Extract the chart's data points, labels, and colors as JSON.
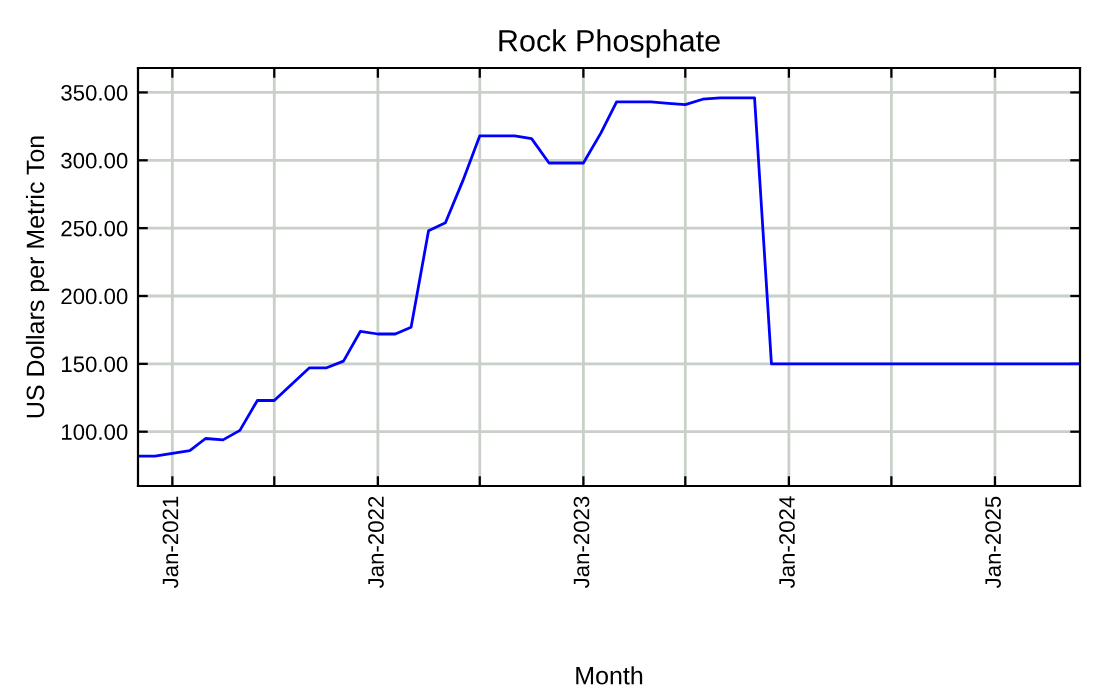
{
  "chart_data": {
    "type": "line",
    "title": "Rock Phosphate",
    "xlabel": "Month",
    "ylabel": "US Dollars per Metric Ton",
    "series": [
      {
        "color": "#0000ff",
        "x": [
          "2020-11",
          "2020-12",
          "2021-01",
          "2021-02",
          "2021-03",
          "2021-04",
          "2021-05",
          "2021-06",
          "2021-07",
          "2021-08",
          "2021-09",
          "2021-10",
          "2021-11",
          "2021-12",
          "2022-01",
          "2022-02",
          "2022-03",
          "2022-04",
          "2022-05",
          "2022-06",
          "2022-07",
          "2022-08",
          "2022-09",
          "2022-10",
          "2022-11",
          "2022-12",
          "2023-01",
          "2023-02",
          "2023-03",
          "2023-04",
          "2023-05",
          "2023-06",
          "2023-07",
          "2023-08",
          "2023-09",
          "2023-10",
          "2023-11",
          "2023-12",
          "2024-06",
          "2025-01",
          "2025-06"
        ],
        "values": [
          82,
          82,
          84,
          86,
          95,
          94,
          101,
          123,
          123,
          135,
          147,
          147,
          152,
          174,
          172,
          172,
          177,
          248,
          254,
          285,
          318,
          318,
          318,
          316,
          298,
          298,
          298,
          320,
          343,
          343,
          343,
          342,
          341,
          345,
          346,
          346,
          346,
          150,
          150,
          150,
          150
        ]
      }
    ],
    "xlim": [
      "2020-11",
      "2025-06"
    ],
    "xticks": [
      {
        "value": "2021-01",
        "label": "Jan-2021"
      },
      {
        "value": "2021-07",
        "label": null
      },
      {
        "value": "2022-01",
        "label": "Jan-2022"
      },
      {
        "value": "2022-07",
        "label": null
      },
      {
        "value": "2023-01",
        "label": "Jan-2023"
      },
      {
        "value": "2023-07",
        "label": null
      },
      {
        "value": "2024-01",
        "label": "Jan-2024"
      },
      {
        "value": "2024-07",
        "label": null
      },
      {
        "value": "2025-01",
        "label": "Jan-2025"
      }
    ],
    "ylim": [
      60,
      368
    ],
    "yticks": [
      {
        "value": 100,
        "label": "100.00"
      },
      {
        "value": 150,
        "label": "150.00"
      },
      {
        "value": 200,
        "label": "200.00"
      },
      {
        "value": 250,
        "label": "250.00"
      },
      {
        "value": 300,
        "label": "300.00"
      },
      {
        "value": 350,
        "label": "350.00"
      }
    ],
    "grid": true,
    "legend": false,
    "marker": "none",
    "line_style": "solid"
  }
}
